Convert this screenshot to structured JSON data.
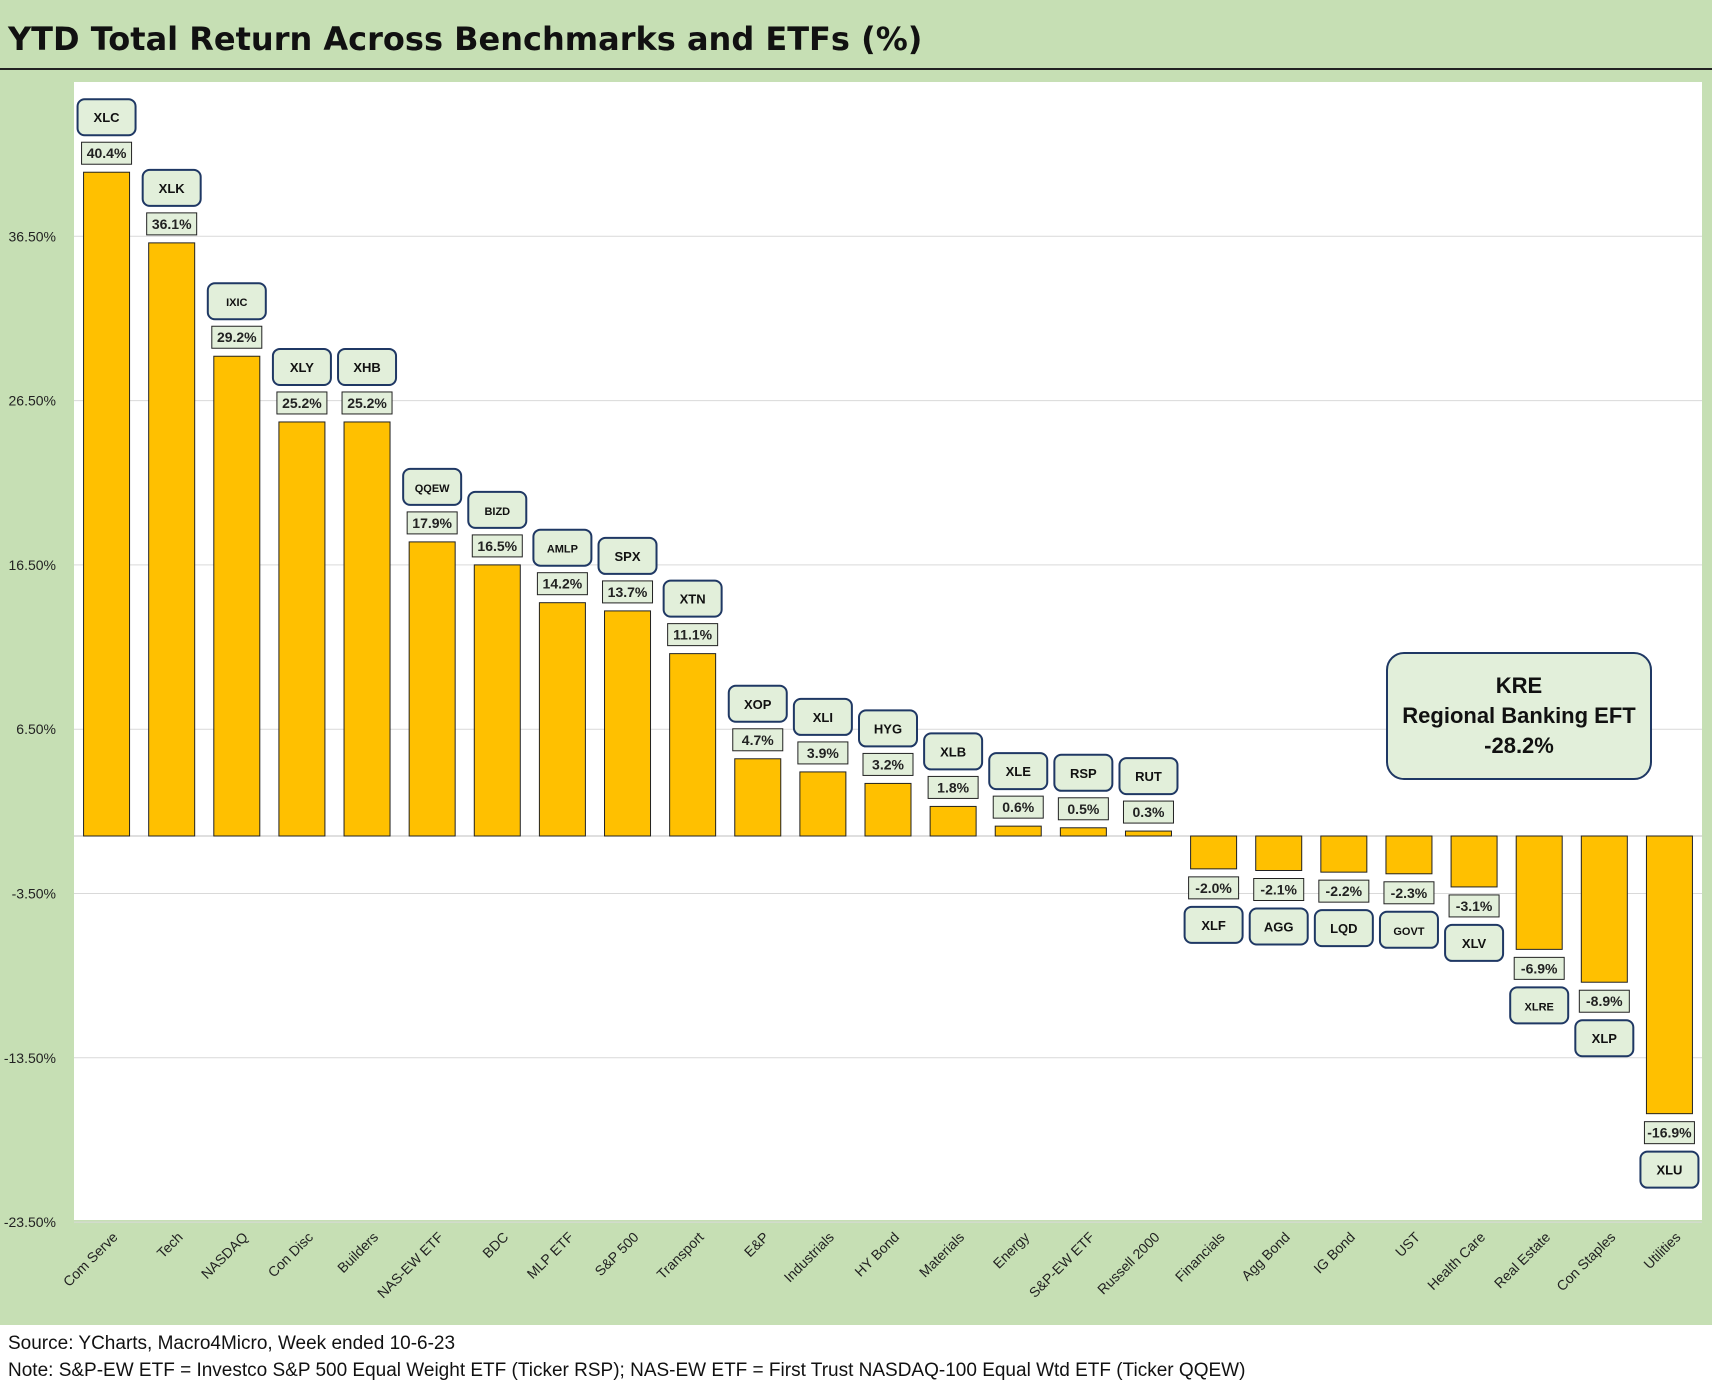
{
  "title": "YTD Total Return Across Benchmarks and ETFs (%)",
  "footer": {
    "source": "Source: YCharts, Macro4Micro, Week ended 10-6-23",
    "note": "Note: S&P-EW ETF = Investco S&P 500 Equal Weight ETF (Ticker RSP); NAS-EW ETF = First Trust NASDAQ-100 Equal Wtd ETF (Ticker QQEW)"
  },
  "callout": {
    "line1": "KRE",
    "line2": "Regional Banking EFT",
    "line3": "-28.2%"
  },
  "colors": {
    "bar": "#ffc000",
    "frame": "#c6dfb4",
    "label_fill": "#e2efda",
    "ticker_border": "#1f3864"
  },
  "chart_data": {
    "type": "bar",
    "title": "YTD Total Return Across Benchmarks and ETFs (%)",
    "ylim": [
      -23.5,
      41.0
    ],
    "y_ticks": [
      "36.50%",
      "26.50%",
      "16.50%",
      "6.50%",
      "-3.50%",
      "-13.50%",
      "-23.50%"
    ],
    "y_tick_values": [
      36.5,
      26.5,
      16.5,
      6.5,
      -3.5,
      -13.5,
      -23.5
    ],
    "grid": true,
    "categories": [
      "Com Serve",
      "Tech",
      "NASDAQ",
      "Con Disc",
      "Builders",
      "NAS-EW ETF",
      "BDC",
      "MLP ETF",
      "S&P 500",
      "Transport",
      "E&P",
      "Industrials",
      "HY Bond",
      "Materials",
      "Energy",
      "S&P-EW ETF",
      "Russell 2000",
      "Financials",
      "Agg Bond",
      "IG Bond",
      "UST",
      "Health Care",
      "Real Estate",
      "Con Staples",
      "Utilities"
    ],
    "values": [
      40.4,
      36.1,
      29.2,
      25.2,
      25.2,
      17.9,
      16.5,
      14.2,
      13.7,
      11.1,
      4.7,
      3.9,
      3.2,
      1.8,
      0.6,
      0.5,
      0.3,
      -2.0,
      -2.1,
      -2.2,
      -2.3,
      -3.1,
      -6.9,
      -8.9,
      -16.9
    ],
    "data_labels": [
      "40.4%",
      "36.1%",
      "29.2%",
      "25.2%",
      "25.2%",
      "17.9%",
      "16.5%",
      "14.2%",
      "13.7%",
      "11.1%",
      "4.7%",
      "3.9%",
      "3.2%",
      "1.8%",
      "0.6%",
      "0.5%",
      "0.3%",
      "-2.0%",
      "-2.1%",
      "-2.2%",
      "-2.3%",
      "-3.1%",
      "-6.9%",
      "-8.9%",
      "-16.9%"
    ],
    "tickers": [
      "XLC",
      "XLK",
      "IXIC",
      "XLY",
      "XHB",
      "QQEW",
      "BIZD",
      "AMLP",
      "SPX",
      "XTN",
      "XOP",
      "XLI",
      "HYG",
      "XLB",
      "XLE",
      "RSP",
      "RUT",
      "XLF",
      "AGG",
      "LQD",
      "GOVT",
      "XLV",
      "XLRE",
      "XLP",
      "XLU"
    ]
  }
}
